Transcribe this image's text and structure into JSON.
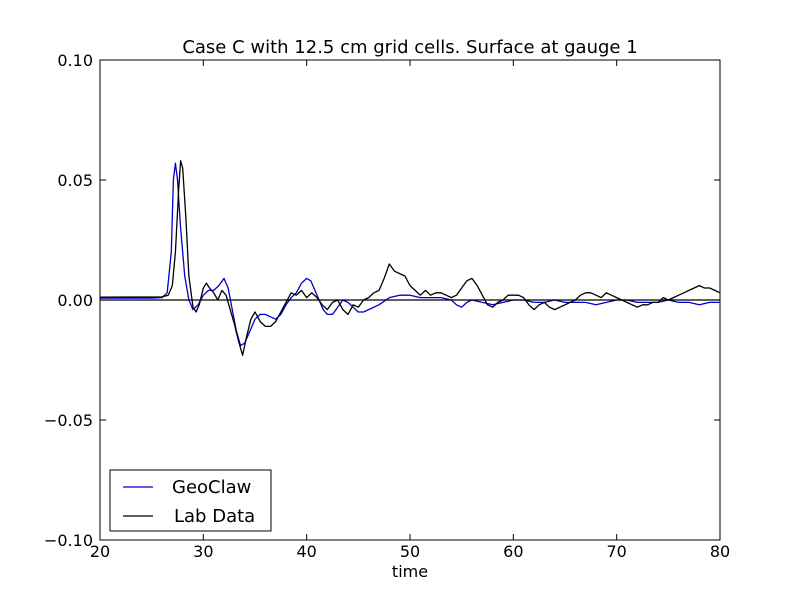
{
  "chart_data": {
    "type": "line",
    "title": "Case C with 12.5 cm grid cells.  Surface at gauge 1",
    "xlabel": "time",
    "ylabel": "",
    "xlim": [
      20,
      80
    ],
    "ylim": [
      -0.1,
      0.1
    ],
    "x_ticks": [
      20,
      30,
      40,
      50,
      60,
      70,
      80
    ],
    "x_tick_labels": [
      "20",
      "30",
      "40",
      "50",
      "60",
      "70",
      "80"
    ],
    "y_ticks": [
      -0.1,
      -0.05,
      0.0,
      0.05,
      0.1
    ],
    "y_tick_labels": [
      "−0.10",
      "−0.05",
      "0.00",
      "0.05",
      "0.10"
    ],
    "grid": false,
    "legend_position": "lower-left",
    "reference_line": 0,
    "series": [
      {
        "name": "GeoClaw",
        "color": "#0000cc",
        "points": [
          [
            20,
            0.0008
          ],
          [
            25,
            0.0008
          ],
          [
            26,
            0.001
          ],
          [
            26.5,
            0.003
          ],
          [
            26.9,
            0.02
          ],
          [
            27.1,
            0.05
          ],
          [
            27.3,
            0.057
          ],
          [
            27.5,
            0.05
          ],
          [
            27.8,
            0.03
          ],
          [
            28.2,
            0.01
          ],
          [
            28.6,
            0.0
          ],
          [
            29.0,
            -0.004
          ],
          [
            29.5,
            -0.002
          ],
          [
            30.0,
            0.002
          ],
          [
            30.5,
            0.004
          ],
          [
            31.0,
            0.004
          ],
          [
            31.5,
            0.006
          ],
          [
            32.0,
            0.009
          ],
          [
            32.4,
            0.005
          ],
          [
            32.8,
            -0.004
          ],
          [
            33.2,
            -0.013
          ],
          [
            33.6,
            -0.019
          ],
          [
            34.0,
            -0.018
          ],
          [
            34.5,
            -0.013
          ],
          [
            35.0,
            -0.008
          ],
          [
            35.5,
            -0.006
          ],
          [
            36.0,
            -0.006
          ],
          [
            36.5,
            -0.007
          ],
          [
            37.0,
            -0.008
          ],
          [
            37.5,
            -0.006
          ],
          [
            38.0,
            -0.002
          ],
          [
            38.5,
            0.001
          ],
          [
            39.0,
            0.003
          ],
          [
            39.5,
            0.007
          ],
          [
            40.0,
            0.009
          ],
          [
            40.4,
            0.008
          ],
          [
            40.8,
            0.004
          ],
          [
            41.2,
            0.0
          ],
          [
            41.6,
            -0.004
          ],
          [
            42.0,
            -0.006
          ],
          [
            42.5,
            -0.006
          ],
          [
            43.0,
            -0.003
          ],
          [
            43.5,
            0.0
          ],
          [
            44.0,
            -0.001
          ],
          [
            44.5,
            -0.003
          ],
          [
            45.0,
            -0.005
          ],
          [
            45.5,
            -0.005
          ],
          [
            46.0,
            -0.004
          ],
          [
            47.0,
            -0.002
          ],
          [
            48.0,
            0.001
          ],
          [
            49.0,
            0.002
          ],
          [
            50.0,
            0.002
          ],
          [
            51.0,
            0.001
          ],
          [
            52.0,
            0.001
          ],
          [
            53.0,
            0.001
          ],
          [
            54.0,
            0.0
          ],
          [
            54.5,
            -0.002
          ],
          [
            55.0,
            -0.003
          ],
          [
            55.5,
            -0.001
          ],
          [
            56.0,
            0.0
          ],
          [
            57.0,
            -0.001
          ],
          [
            58.0,
            -0.002
          ],
          [
            59.0,
            -0.001
          ],
          [
            60.0,
            0.0
          ],
          [
            61.0,
            0.0
          ],
          [
            62.0,
            -0.001
          ],
          [
            63.0,
            -0.001
          ],
          [
            64.0,
            0.0
          ],
          [
            65.0,
            -0.001
          ],
          [
            66.0,
            -0.001
          ],
          [
            67.0,
            -0.001
          ],
          [
            68.0,
            -0.002
          ],
          [
            69.0,
            -0.001
          ],
          [
            70.0,
            0.0
          ],
          [
            71.0,
            0.0
          ],
          [
            72.0,
            -0.001
          ],
          [
            73.0,
            -0.001
          ],
          [
            74.0,
            -0.001
          ],
          [
            75.0,
            0.0
          ],
          [
            76.0,
            -0.001
          ],
          [
            77.0,
            -0.001
          ],
          [
            78.0,
            -0.002
          ],
          [
            79.0,
            -0.001
          ],
          [
            80.0,
            -0.001
          ]
        ]
      },
      {
        "name": "Lab Data",
        "color": "#000000",
        "points": [
          [
            20,
            0.0012
          ],
          [
            26,
            0.0013
          ],
          [
            26.6,
            0.002
          ],
          [
            27.0,
            0.006
          ],
          [
            27.3,
            0.02
          ],
          [
            27.6,
            0.045
          ],
          [
            27.8,
            0.058
          ],
          [
            28.0,
            0.055
          ],
          [
            28.3,
            0.035
          ],
          [
            28.6,
            0.01
          ],
          [
            29.0,
            -0.003
          ],
          [
            29.3,
            -0.005
          ],
          [
            29.6,
            -0.002
          ],
          [
            30.0,
            0.005
          ],
          [
            30.3,
            0.007
          ],
          [
            30.6,
            0.005
          ],
          [
            31.0,
            0.003
          ],
          [
            31.4,
            0.0
          ],
          [
            31.8,
            0.004
          ],
          [
            32.2,
            0.002
          ],
          [
            32.6,
            -0.004
          ],
          [
            33.0,
            -0.01
          ],
          [
            33.4,
            -0.017
          ],
          [
            33.8,
            -0.023
          ],
          [
            34.2,
            -0.015
          ],
          [
            34.6,
            -0.008
          ],
          [
            35.0,
            -0.005
          ],
          [
            35.5,
            -0.009
          ],
          [
            36.0,
            -0.011
          ],
          [
            36.5,
            -0.011
          ],
          [
            37.0,
            -0.009
          ],
          [
            37.5,
            -0.005
          ],
          [
            38.0,
            -0.001
          ],
          [
            38.5,
            0.003
          ],
          [
            39.0,
            0.002
          ],
          [
            39.5,
            0.004
          ],
          [
            40.0,
            0.001
          ],
          [
            40.5,
            0.003
          ],
          [
            41.0,
            0.001
          ],
          [
            41.5,
            -0.002
          ],
          [
            42.0,
            -0.004
          ],
          [
            42.5,
            -0.001
          ],
          [
            43.0,
            0.0
          ],
          [
            43.5,
            -0.004
          ],
          [
            44.0,
            -0.006
          ],
          [
            44.5,
            -0.002
          ],
          [
            45.0,
            -0.003
          ],
          [
            45.5,
            0.0
          ],
          [
            46.0,
            0.001
          ],
          [
            46.5,
            0.003
          ],
          [
            47.0,
            0.004
          ],
          [
            47.5,
            0.009
          ],
          [
            48.0,
            0.015
          ],
          [
            48.5,
            0.012
          ],
          [
            49.0,
            0.011
          ],
          [
            49.5,
            0.01
          ],
          [
            50.0,
            0.006
          ],
          [
            50.5,
            0.004
          ],
          [
            51.0,
            0.002
          ],
          [
            51.5,
            0.004
          ],
          [
            52.0,
            0.002
          ],
          [
            52.5,
            0.003
          ],
          [
            53.0,
            0.003
          ],
          [
            53.5,
            0.002
          ],
          [
            54.0,
            0.001
          ],
          [
            54.5,
            0.002
          ],
          [
            55.0,
            0.005
          ],
          [
            55.5,
            0.008
          ],
          [
            56.0,
            0.009
          ],
          [
            56.5,
            0.006
          ],
          [
            57.0,
            0.002
          ],
          [
            57.5,
            -0.002
          ],
          [
            58.0,
            -0.003
          ],
          [
            58.5,
            -0.001
          ],
          [
            59.0,
            0.0
          ],
          [
            59.5,
            0.002
          ],
          [
            60.0,
            0.002
          ],
          [
            60.5,
            0.002
          ],
          [
            61.0,
            0.001
          ],
          [
            61.5,
            -0.002
          ],
          [
            62.0,
            -0.004
          ],
          [
            62.5,
            -0.002
          ],
          [
            63.0,
            -0.001
          ],
          [
            63.5,
            -0.003
          ],
          [
            64.0,
            -0.004
          ],
          [
            64.5,
            -0.003
          ],
          [
            65.0,
            -0.002
          ],
          [
            65.5,
            -0.001
          ],
          [
            66.0,
            0.0
          ],
          [
            66.5,
            0.002
          ],
          [
            67.0,
            0.003
          ],
          [
            67.5,
            0.003
          ],
          [
            68.0,
            0.002
          ],
          [
            68.5,
            0.001
          ],
          [
            69.0,
            0.003
          ],
          [
            69.5,
            0.002
          ],
          [
            70.0,
            0.001
          ],
          [
            70.5,
            0.0
          ],
          [
            71.0,
            -0.001
          ],
          [
            71.5,
            -0.002
          ],
          [
            72.0,
            -0.003
          ],
          [
            72.5,
            -0.002
          ],
          [
            73.0,
            -0.002
          ],
          [
            73.5,
            -0.001
          ],
          [
            74.0,
            -0.001
          ],
          [
            74.5,
            0.001
          ],
          [
            75.0,
            0.0
          ],
          [
            75.5,
            0.001
          ],
          [
            76.0,
            0.002
          ],
          [
            76.5,
            0.003
          ],
          [
            77.0,
            0.004
          ],
          [
            77.5,
            0.005
          ],
          [
            78.0,
            0.006
          ],
          [
            78.5,
            0.005
          ],
          [
            79.0,
            0.005
          ],
          [
            79.5,
            0.004
          ],
          [
            80.0,
            0.003
          ]
        ]
      }
    ]
  }
}
